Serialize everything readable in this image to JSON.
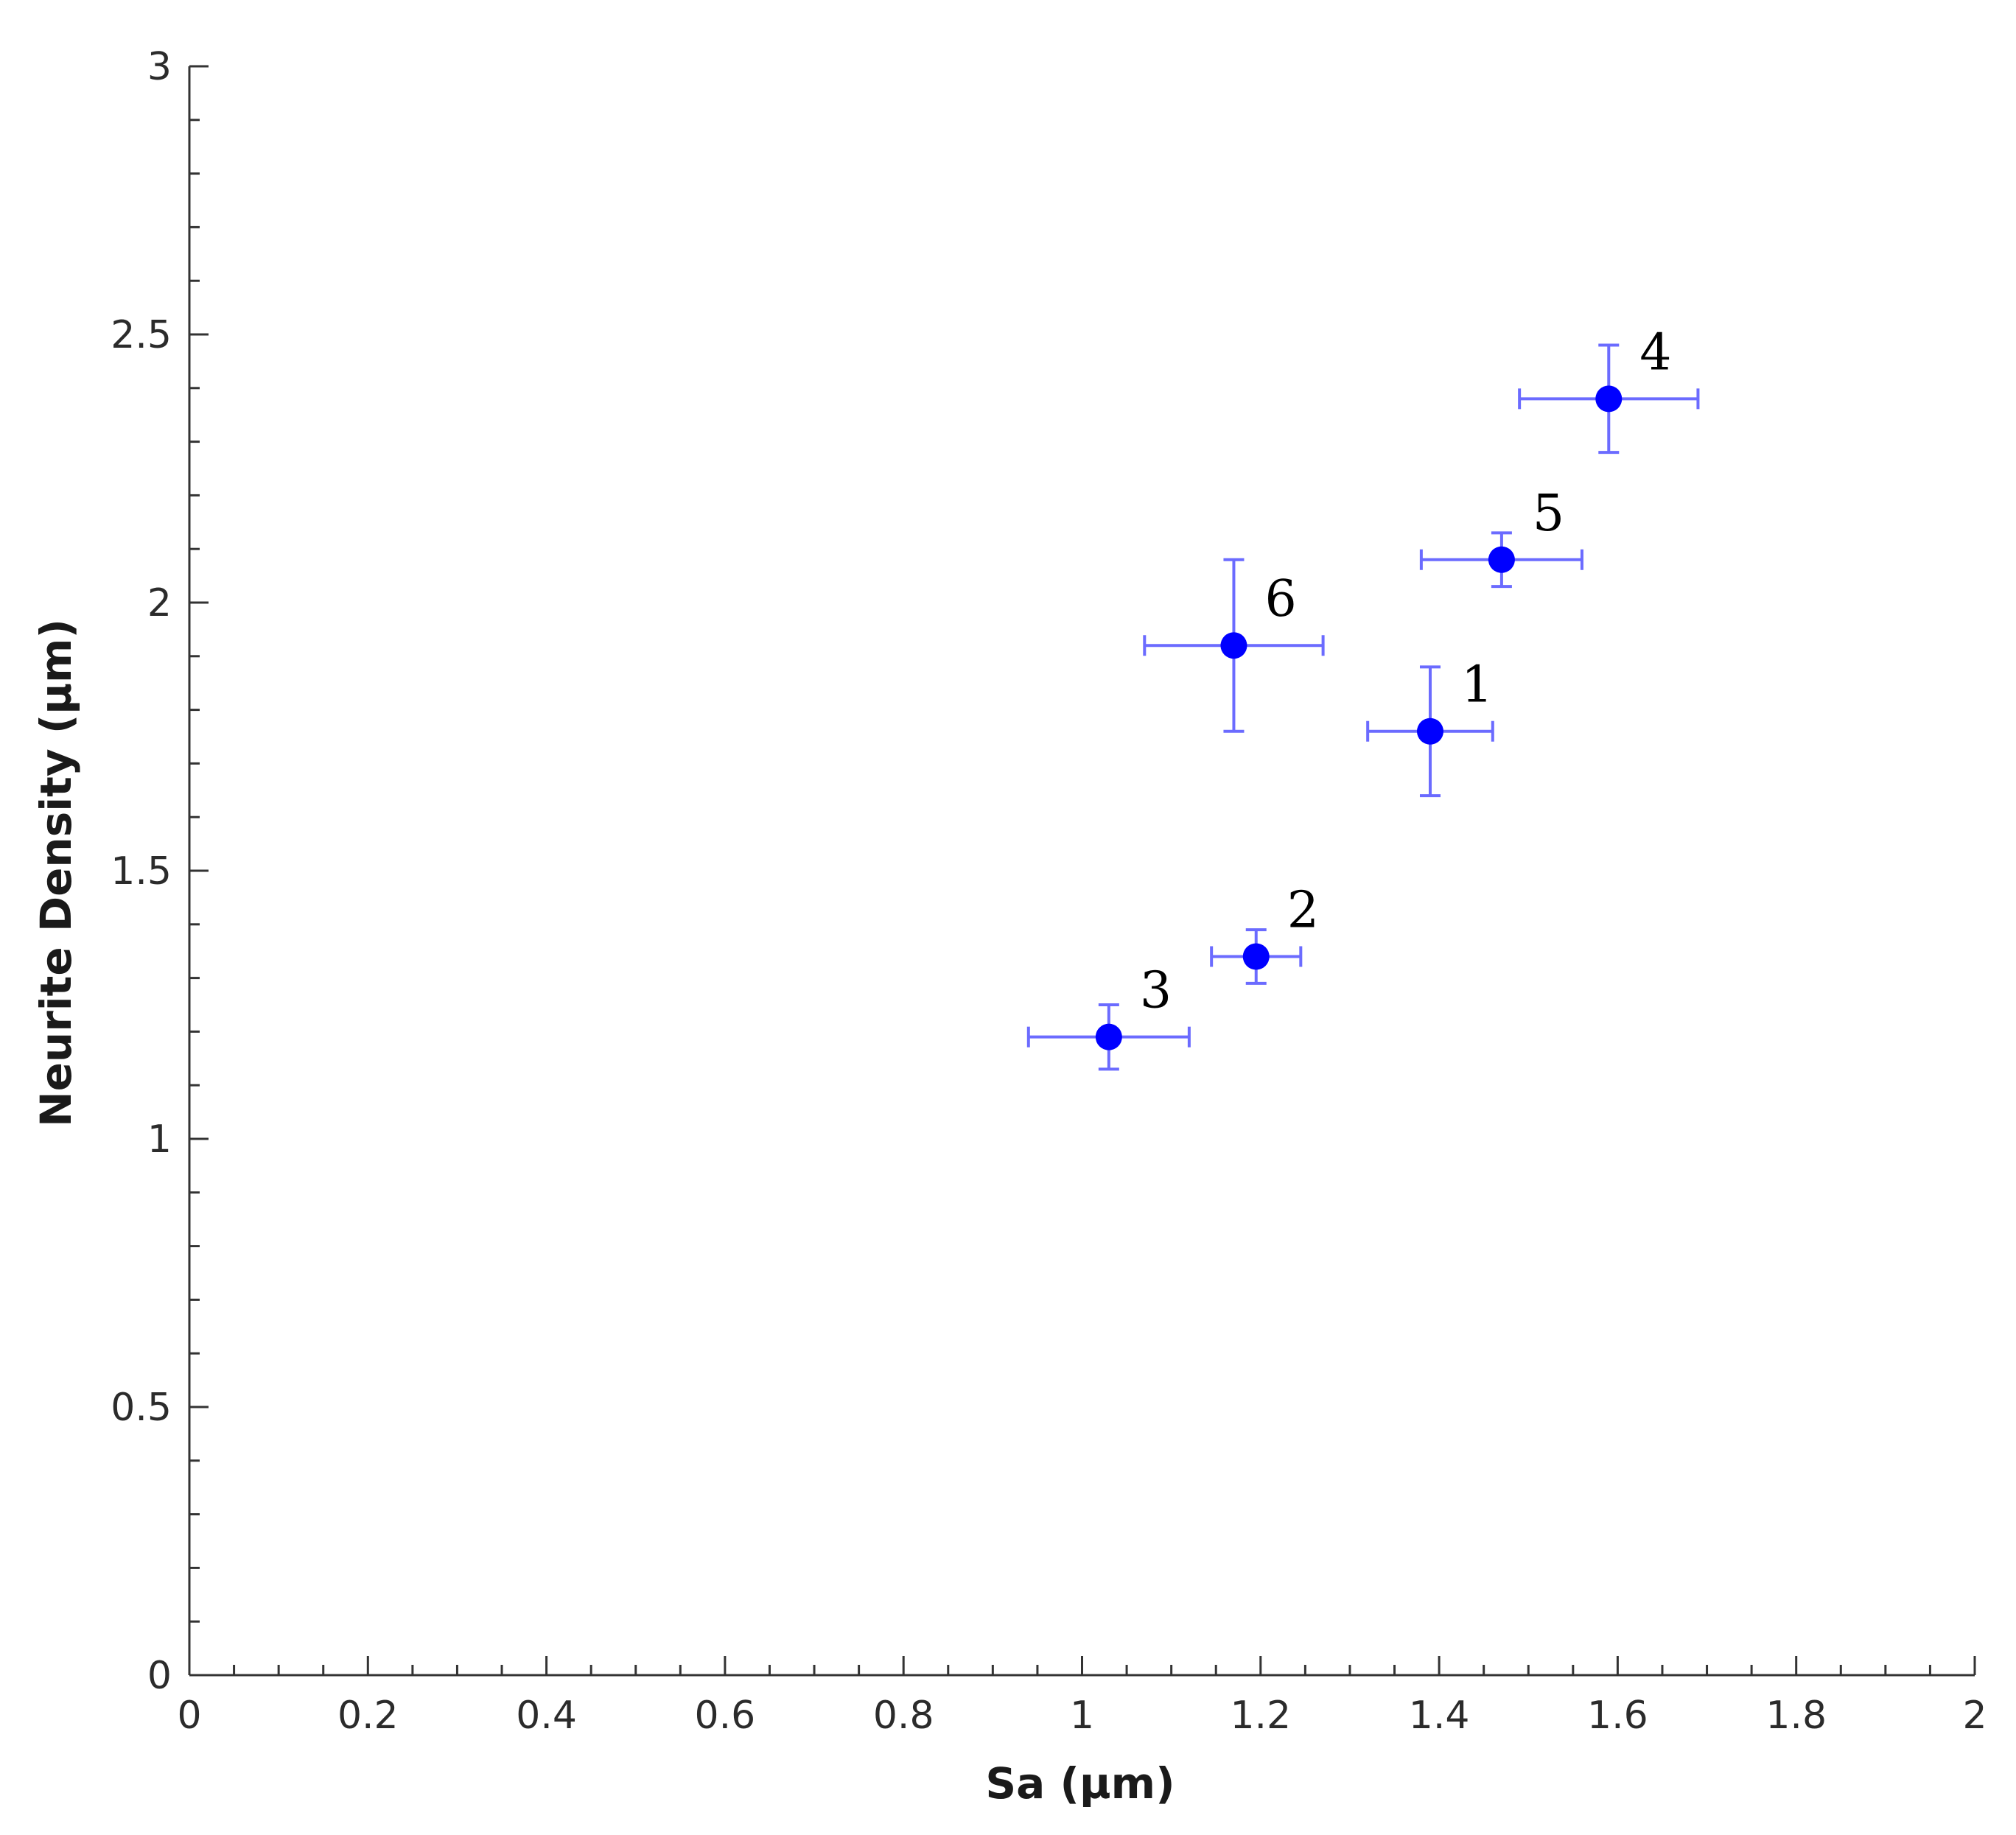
{
  "chart_data": {
    "type": "scatter",
    "title": "",
    "xlabel": "Sa (µm)",
    "ylabel": "Neurite Density (µm)",
    "xlim": [
      0,
      2
    ],
    "ylim": [
      0,
      3
    ],
    "x_ticks": [
      "0",
      "0.2",
      "0.4",
      "0.6",
      "0.8",
      "1",
      "1.2",
      "1.4",
      "1.6",
      "1.8",
      "2"
    ],
    "y_ticks": [
      "0",
      "0.5",
      "1",
      "1.5",
      "2",
      "2.5",
      "3"
    ],
    "grid": false,
    "legend": "none",
    "marker_color": "#0000ff",
    "errorbar_color": "#6b6bff",
    "points": [
      {
        "label": "1",
        "x": 1.39,
        "y": 1.76,
        "xerr": 0.07,
        "yerr": 0.12
      },
      {
        "label": "2",
        "x": 1.195,
        "y": 1.34,
        "xerr": 0.05,
        "yerr": 0.05
      },
      {
        "label": "3",
        "x": 1.03,
        "y": 1.19,
        "xerr": 0.09,
        "yerr": 0.06
      },
      {
        "label": "4",
        "x": 1.59,
        "y": 2.38,
        "xerr": 0.1,
        "yerr": 0.1
      },
      {
        "label": "5",
        "x": 1.47,
        "y": 2.08,
        "xerr": 0.09,
        "yerr": 0.05
      },
      {
        "label": "6",
        "x": 1.17,
        "y": 1.92,
        "xerr": 0.1,
        "yerr": 0.16
      }
    ]
  }
}
